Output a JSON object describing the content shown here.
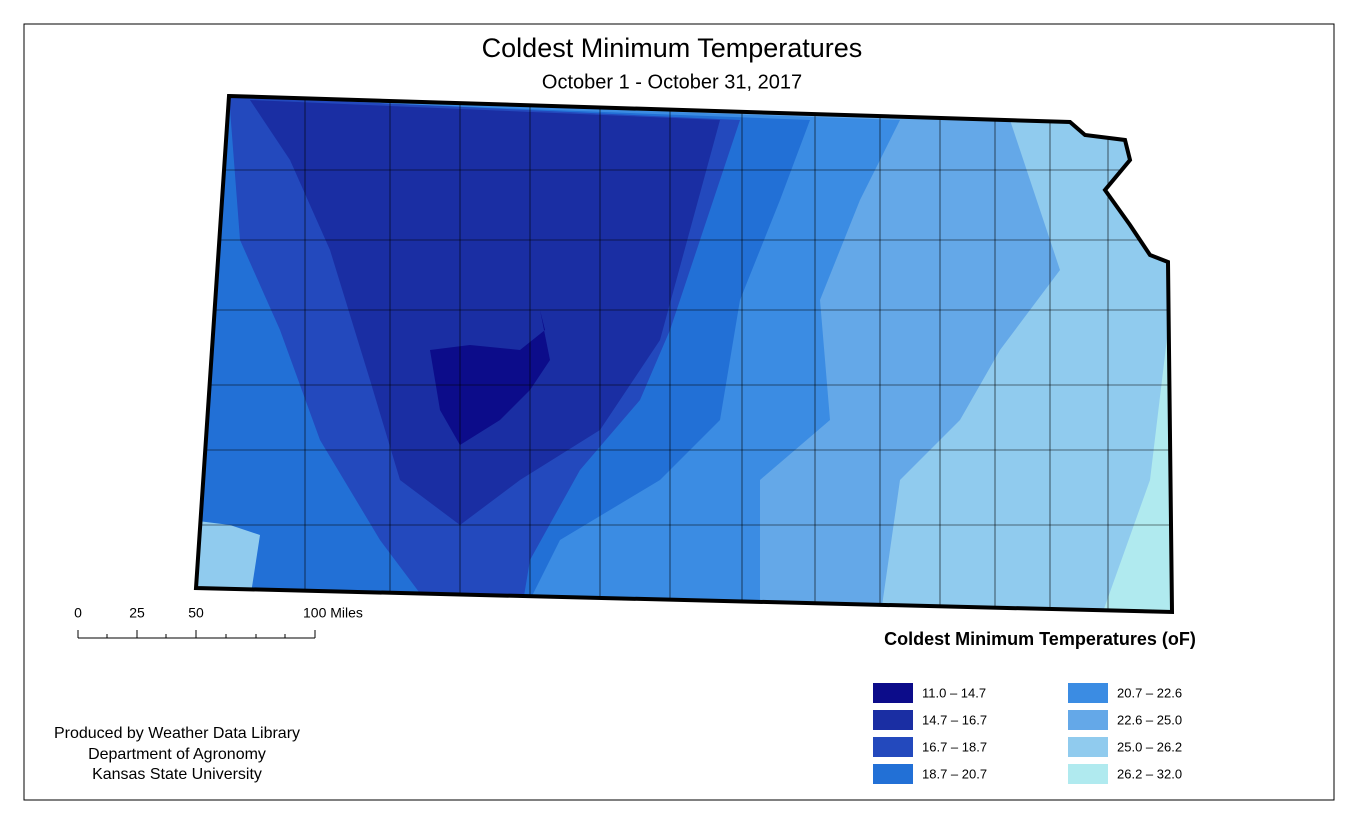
{
  "title": "Coldest Minimum Temperatures",
  "subtitle": "October 1 - October 31, 2017",
  "scale_bar": {
    "labels": [
      "0",
      "25",
      "50",
      "100 Miles"
    ]
  },
  "legend": {
    "title": "Coldest Minimum Temperatures (oF)",
    "items": [
      {
        "label": "11.0 – 14.7",
        "color": "#0c0c8a"
      },
      {
        "label": "14.7 – 16.7",
        "color": "#1a2ea3"
      },
      {
        "label": "16.7 – 18.7",
        "color": "#2349bd"
      },
      {
        "label": "18.7 – 20.7",
        "color": "#2270d6"
      },
      {
        "label": "20.7 – 22.6",
        "color": "#3b8ce3"
      },
      {
        "label": "22.6 – 25.0",
        "color": "#64a8e8"
      },
      {
        "label": "25.0 – 26.2",
        "color": "#90cbee"
      },
      {
        "label": "26.2 – 32.0",
        "color": "#b0eaef"
      }
    ]
  },
  "credits": [
    "Produced by Weather Data Library",
    "Department of Agronomy",
    "Kansas State University"
  ]
}
